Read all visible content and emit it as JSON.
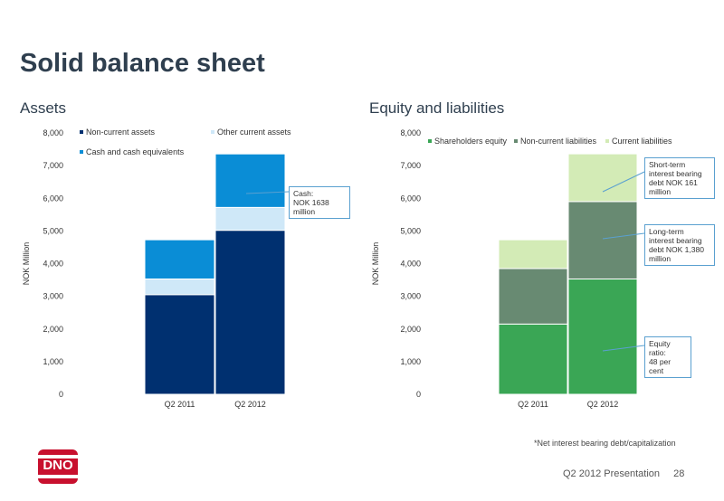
{
  "slide": {
    "title": "Solid balance sheet",
    "footnote": "*Net interest bearing debt/capitalization",
    "footer_text": "Q2 2012 Presentation",
    "page_number": "28",
    "logo_text": "DNO"
  },
  "colors": {
    "non_current_assets": "#003070",
    "other_current_assets": "#cfe8f8",
    "cash": "#0a8dd6",
    "shareholders_equity": "#3aa655",
    "non_current_liabilities": "#688a72",
    "current_liabilities": "#d3ebb6"
  },
  "chart_data": [
    {
      "type": "bar",
      "stacked": true,
      "title": "Assets",
      "ylabel": "NOK Million",
      "ylim": [
        0,
        8000
      ],
      "yticks": [
        "0",
        "1,000",
        "2,000",
        "3,000",
        "4,000",
        "5,000",
        "6,000",
        "7,000",
        "8,000"
      ],
      "categories": [
        "Q2 2011",
        "Q2 2012"
      ],
      "series": [
        {
          "name": "Non-current assets",
          "values": [
            3050,
            5020
          ]
        },
        {
          "name": "Other current assets",
          "values": [
            480,
            700
          ]
        },
        {
          "name": "Cash and cash equivalents",
          "values": [
            1200,
            1638
          ]
        }
      ],
      "legend_position": "top",
      "annotations": [
        {
          "text": "Cash:\nNOK 1638 million"
        }
      ]
    },
    {
      "type": "bar",
      "stacked": true,
      "title": "Equity and liabilities",
      "ylabel": "NOK Million",
      "ylim": [
        0,
        8000
      ],
      "yticks": [
        "0",
        "1,000",
        "2,000",
        "3,000",
        "4,000",
        "5,000",
        "6,000",
        "7,000",
        "8,000"
      ],
      "categories": [
        "Q2 2011",
        "Q2 2012"
      ],
      "series": [
        {
          "name": "Shareholders equity",
          "values": [
            2150,
            3530
          ]
        },
        {
          "name": "Non-current liabilities",
          "values": [
            1700,
            2370
          ]
        },
        {
          "name": "Current liabilities",
          "values": [
            880,
            1460
          ]
        }
      ],
      "legend_position": "top",
      "annotations": [
        {
          "text": "Short-term\ninterest bearing\ndebt NOK 161\nmillion"
        },
        {
          "text": "Long-term\ninterest bearing\ndebt NOK 1,380\nmillion"
        },
        {
          "text": "Equity ratio:\n 48 per cent"
        }
      ]
    }
  ]
}
